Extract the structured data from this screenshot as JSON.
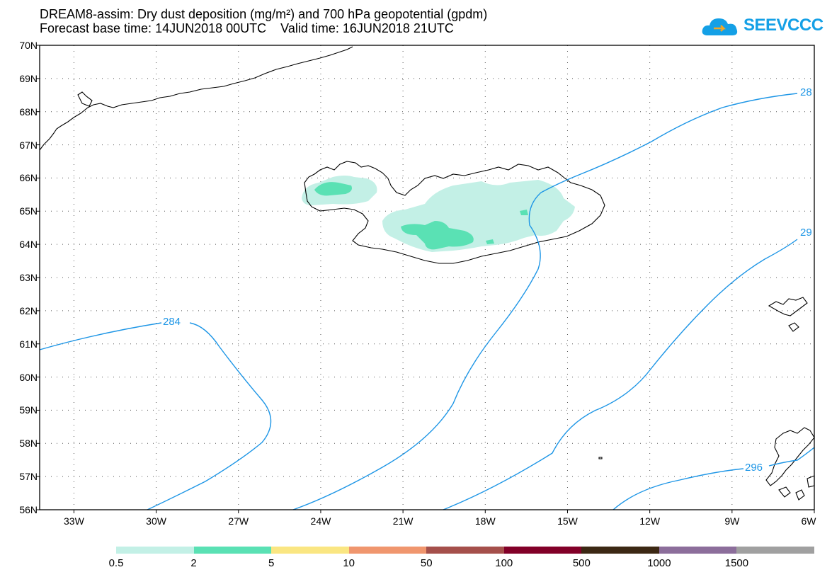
{
  "title": {
    "line1": "DREAM8-assim: Dry dust deposition (mg/m²) and 700 hPa geopotential (gpdm)",
    "line2": "Forecast base time: 14JUN2018 00UTC    Valid time: 16JUN2018 21UTC"
  },
  "logo": {
    "text": "SEEVCCC",
    "color": "#14a0e6"
  },
  "map": {
    "lat_labels": [
      "70N",
      "69N",
      "68N",
      "67N",
      "66N",
      "65N",
      "64N",
      "63N",
      "62N",
      "61N",
      "60N",
      "59N",
      "58N",
      "57N",
      "56N"
    ],
    "lon_labels": [
      "33W",
      "30W",
      "27W",
      "24W",
      "21W",
      "18W",
      "15W",
      "12W",
      "9W",
      "6W"
    ],
    "contour_labels": [
      "284",
      "296",
      "28",
      "29"
    ],
    "contour_color": "#1e96e6",
    "grid": "dotted"
  },
  "colorbar": {
    "colors": [
      "#c3f0e6",
      "#5ae1b4",
      "#fae682",
      "#f0966e",
      "#a5504b",
      "#820028",
      "#3c2814",
      "#8c6e9b",
      "#a0a0a0"
    ],
    "labels": [
      "0.5",
      "2",
      "5",
      "10",
      "50",
      "100",
      "500",
      "1000",
      "1500"
    ]
  }
}
